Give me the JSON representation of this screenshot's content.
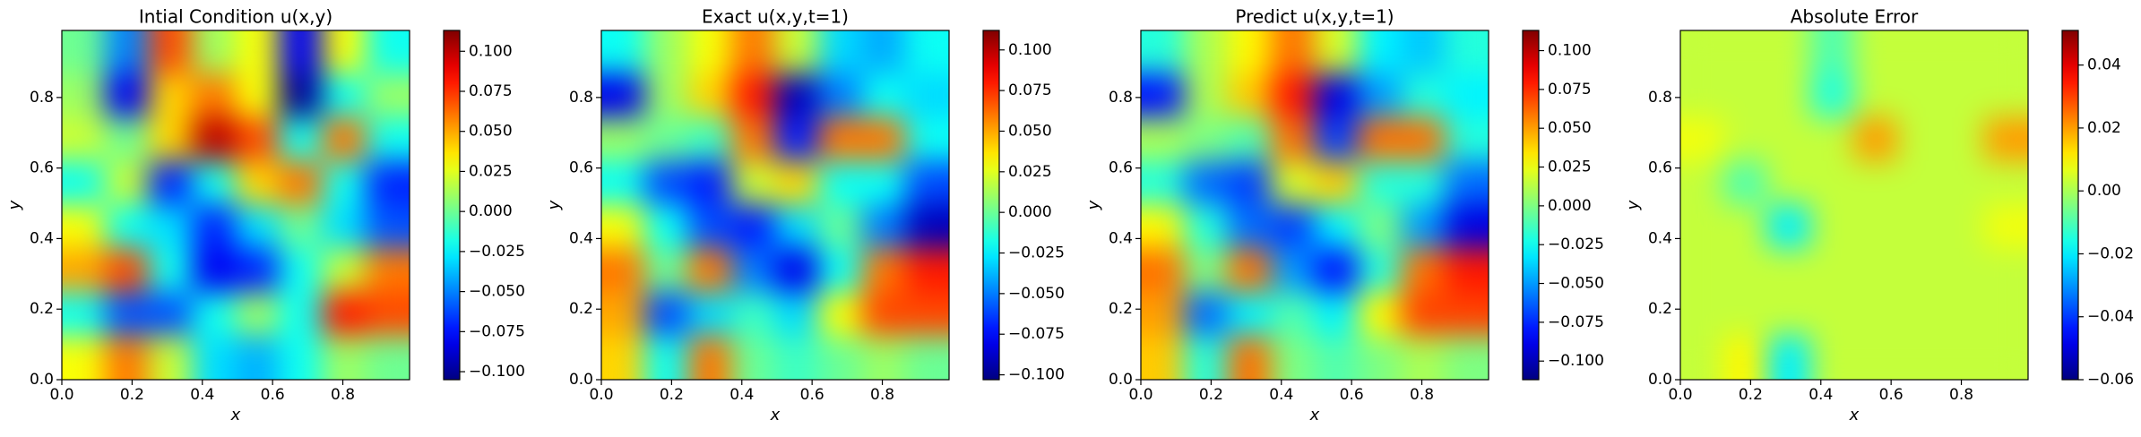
{
  "chart_data": [
    {
      "type": "heatmap",
      "title": "Intial Condition u(x,y)",
      "xlabel": "x",
      "ylabel": "y",
      "colormap": "jet",
      "xlim": [
        0,
        0.99
      ],
      "ylim": [
        0,
        0.99
      ],
      "xticks": [
        {
          "value": 0,
          "label": "0.0"
        },
        {
          "value": 0.2,
          "label": "0.2"
        },
        {
          "value": 0.4,
          "label": "0.4"
        },
        {
          "value": 0.6,
          "label": "0.6"
        },
        {
          "value": 0.8,
          "label": "0.8"
        }
      ],
      "yticks": [
        {
          "value": 0,
          "label": "0.0"
        },
        {
          "value": 0.2,
          "label": "0.2"
        },
        {
          "value": 0.4,
          "label": "0.4"
        },
        {
          "value": 0.6,
          "label": "0.6"
        },
        {
          "value": 0.8,
          "label": "0.8"
        }
      ],
      "clim": [
        -0.105,
        0.113
      ],
      "cticks": [
        {
          "value": -0.1,
          "label": "−0.100"
        },
        {
          "value": -0.075,
          "label": "−0.075"
        },
        {
          "value": -0.05,
          "label": "−0.050"
        },
        {
          "value": -0.025,
          "label": "−0.025"
        },
        {
          "value": 0,
          "label": "0.000"
        },
        {
          "value": 0.025,
          "label": "0.025"
        },
        {
          "value": 0.05,
          "label": "0.050"
        },
        {
          "value": 0.075,
          "label": "0.075"
        },
        {
          "value": 0.1,
          "label": "0.100"
        }
      ],
      "z": [
        [
          0,
          -0.05,
          0.07,
          0.01,
          0.03,
          -0.08,
          0.03,
          -0.02
        ],
        [
          0.01,
          -0.08,
          0.04,
          0.06,
          0.03,
          -0.1,
          -0.02,
          0.01
        ],
        [
          0.02,
          0,
          0.04,
          0.1,
          0.07,
          -0.02,
          0.06,
          -0.02
        ],
        [
          -0.02,
          0.02,
          -0.07,
          -0.02,
          0.04,
          0.06,
          -0.02,
          -0.07
        ],
        [
          0.03,
          -0.02,
          -0.03,
          -0.07,
          -0.03,
          0,
          -0.03,
          -0.06
        ],
        [
          0.05,
          0.07,
          -0.02,
          -0.08,
          -0.07,
          -0.02,
          0.02,
          0.06
        ],
        [
          -0.02,
          -0.06,
          -0.06,
          -0.02,
          0.01,
          -0.02,
          0.08,
          0.07
        ],
        [
          0.03,
          0.06,
          0.02,
          -0.03,
          -0.04,
          -0.02,
          0.01,
          0
        ]
      ]
    },
    {
      "type": "heatmap",
      "title": "Exact u(x,y,t=1)",
      "xlabel": "x",
      "ylabel": "y",
      "colormap": "jet",
      "xlim": [
        0,
        0.99
      ],
      "ylim": [
        0,
        0.99
      ],
      "xticks": [
        {
          "value": 0,
          "label": "0.0"
        },
        {
          "value": 0.2,
          "label": "0.2"
        },
        {
          "value": 0.4,
          "label": "0.4"
        },
        {
          "value": 0.6,
          "label": "0.6"
        },
        {
          "value": 0.8,
          "label": "0.8"
        }
      ],
      "yticks": [
        {
          "value": 0,
          "label": "0.0"
        },
        {
          "value": 0.2,
          "label": "0.2"
        },
        {
          "value": 0.4,
          "label": "0.4"
        },
        {
          "value": 0.6,
          "label": "0.6"
        },
        {
          "value": 0.8,
          "label": "0.8"
        }
      ],
      "clim": [
        -0.103,
        0.112
      ],
      "cticks": [
        {
          "value": -0.1,
          "label": "−0.100"
        },
        {
          "value": -0.075,
          "label": "−0.075"
        },
        {
          "value": -0.05,
          "label": "−0.050"
        },
        {
          "value": -0.025,
          "label": "−0.025"
        },
        {
          "value": 0,
          "label": "0.000"
        },
        {
          "value": 0.025,
          "label": "0.025"
        },
        {
          "value": 0.05,
          "label": "0.050"
        },
        {
          "value": 0.075,
          "label": "0.075"
        },
        {
          "value": 0.1,
          "label": "0.100"
        }
      ],
      "z": [
        [
          -0.02,
          0.01,
          0.03,
          0.06,
          0.02,
          -0.03,
          -0.04,
          -0.02
        ],
        [
          -0.08,
          0.01,
          0.04,
          0.08,
          -0.09,
          -0.05,
          -0.02,
          -0.03
        ],
        [
          0.01,
          0,
          -0.01,
          0.06,
          -0.07,
          0.06,
          0.06,
          -0.02
        ],
        [
          -0.02,
          -0.06,
          -0.07,
          0.02,
          0.04,
          -0.02,
          -0.02,
          -0.06
        ],
        [
          0.03,
          -0.02,
          -0.06,
          -0.07,
          -0.03,
          0,
          -0.05,
          -0.09
        ],
        [
          0.06,
          0,
          0.06,
          -0.05,
          -0.08,
          -0.02,
          0.06,
          0.08
        ],
        [
          0.05,
          -0.06,
          -0.03,
          -0.01,
          -0.03,
          0.03,
          0.07,
          0.07
        ],
        [
          0.04,
          -0.02,
          0.06,
          0,
          -0.01,
          0,
          0.01,
          0
        ]
      ]
    },
    {
      "type": "heatmap",
      "title": "Predict u(x,y,t=1)",
      "xlabel": "x",
      "ylabel": "y",
      "colormap": "jet",
      "xlim": [
        0,
        0.99
      ],
      "ylim": [
        0,
        0.99
      ],
      "xticks": [
        {
          "value": 0,
          "label": "0.0"
        },
        {
          "value": 0.2,
          "label": "0.2"
        },
        {
          "value": 0.4,
          "label": "0.4"
        },
        {
          "value": 0.6,
          "label": "0.6"
        },
        {
          "value": 0.8,
          "label": "0.8"
        }
      ],
      "yticks": [
        {
          "value": 0,
          "label": "0.0"
        },
        {
          "value": 0.2,
          "label": "0.2"
        },
        {
          "value": 0.4,
          "label": "0.4"
        },
        {
          "value": 0.6,
          "label": "0.6"
        },
        {
          "value": 0.8,
          "label": "0.8"
        }
      ],
      "clim": [
        -0.112,
        0.113
      ],
      "cticks": [
        {
          "value": -0.1,
          "label": "−0.100"
        },
        {
          "value": -0.075,
          "label": "−0.075"
        },
        {
          "value": -0.05,
          "label": "−0.050"
        },
        {
          "value": -0.025,
          "label": "−0.025"
        },
        {
          "value": 0,
          "label": "0.000"
        },
        {
          "value": 0.025,
          "label": "0.025"
        },
        {
          "value": 0.05,
          "label": "0.050"
        },
        {
          "value": 0.075,
          "label": "0.075"
        },
        {
          "value": 0.1,
          "label": "0.100"
        }
      ],
      "z": [
        [
          -0.02,
          0.01,
          0.03,
          0.06,
          0.02,
          -0.03,
          -0.04,
          -0.02
        ],
        [
          -0.08,
          0.01,
          0.04,
          0.08,
          -0.09,
          -0.05,
          -0.02,
          -0.03
        ],
        [
          0.01,
          0,
          -0.01,
          0.06,
          -0.07,
          0.06,
          0.06,
          -0.02
        ],
        [
          -0.02,
          -0.06,
          -0.07,
          0.02,
          0.04,
          -0.02,
          -0.02,
          -0.06
        ],
        [
          0.03,
          -0.02,
          -0.06,
          -0.07,
          -0.03,
          0,
          -0.05,
          -0.09
        ],
        [
          0.06,
          0,
          0.06,
          -0.05,
          -0.08,
          -0.02,
          0.06,
          0.08
        ],
        [
          0.05,
          -0.06,
          -0.03,
          -0.01,
          -0.03,
          0.03,
          0.07,
          0.07
        ],
        [
          0.04,
          -0.02,
          0.06,
          0,
          -0.01,
          0,
          0.01,
          0
        ]
      ]
    },
    {
      "type": "heatmap",
      "title": "Absolute Error",
      "xlabel": "x",
      "ylabel": "y",
      "colormap": "jet",
      "xlim": [
        0,
        0.99
      ],
      "ylim": [
        0,
        0.99
      ],
      "xticks": [
        {
          "value": 0,
          "label": "0.0"
        },
        {
          "value": 0.2,
          "label": "0.2"
        },
        {
          "value": 0.4,
          "label": "0.4"
        },
        {
          "value": 0.6,
          "label": "0.6"
        },
        {
          "value": 0.8,
          "label": "0.8"
        }
      ],
      "yticks": [
        {
          "value": 0,
          "label": "0.0"
        },
        {
          "value": 0.2,
          "label": "0.2"
        },
        {
          "value": 0.4,
          "label": "0.4"
        },
        {
          "value": 0.6,
          "label": "0.6"
        },
        {
          "value": 0.8,
          "label": "0.8"
        }
      ],
      "clim": [
        -0.06,
        0.051
      ],
      "cticks": [
        {
          "value": -0.06,
          "label": "−0.06"
        },
        {
          "value": -0.04,
          "label": "−0.04"
        },
        {
          "value": -0.02,
          "label": "−0.02"
        },
        {
          "value": 0,
          "label": "0.00"
        },
        {
          "value": 0.02,
          "label": "0.02"
        },
        {
          "value": 0.04,
          "label": "0.04"
        }
      ],
      "z": [
        [
          0.003,
          0.003,
          0.003,
          -0.01,
          0.003,
          0.003,
          0.003,
          0.003
        ],
        [
          0.003,
          0.003,
          0.003,
          -0.015,
          0.003,
          0.003,
          0.003,
          0.003
        ],
        [
          0.008,
          0.003,
          0.003,
          0.003,
          0.02,
          0.003,
          0.003,
          0.02
        ],
        [
          0.003,
          -0.01,
          0.003,
          0.003,
          0.003,
          0.003,
          0.003,
          0.003
        ],
        [
          0.003,
          0.003,
          -0.02,
          0.003,
          0.003,
          0.003,
          0.003,
          0.008
        ],
        [
          0.003,
          0.003,
          0.003,
          0.003,
          0.003,
          0.003,
          0.003,
          0.003
        ],
        [
          0.003,
          0.003,
          0.003,
          0.003,
          0.003,
          0.003,
          0.003,
          0.003
        ],
        [
          0.003,
          0.01,
          -0.02,
          0.003,
          0.003,
          0.003,
          0.003,
          0.003
        ]
      ]
    }
  ]
}
